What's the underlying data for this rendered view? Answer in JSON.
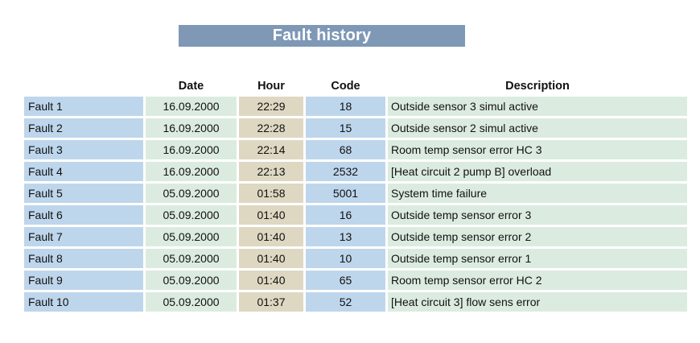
{
  "title": "Fault history",
  "colors": {
    "title_bg": "#7e98b6",
    "title_text": "#ffffff",
    "fault_cell": "#bed6ec",
    "date_cell": "#dcebe0",
    "hour_cell": "#ded7c2",
    "code_cell": "#bed6ec",
    "desc_cell": "#dcebe0",
    "text": "#111111"
  },
  "table": {
    "columns": [
      "",
      "Date",
      "Hour",
      "Code",
      "Description"
    ],
    "rows": [
      {
        "label": "Fault 1",
        "date": "16.09.2000",
        "hour": "22:29",
        "code": "18",
        "description": "Outside sensor 3 simul active"
      },
      {
        "label": "Fault 2",
        "date": "16.09.2000",
        "hour": "22:28",
        "code": "15",
        "description": "Outside sensor 2 simul active"
      },
      {
        "label": "Fault 3",
        "date": "16.09.2000",
        "hour": "22:14",
        "code": "68",
        "description": "Room temp sensor error HC 3"
      },
      {
        "label": "Fault 4",
        "date": "16.09.2000",
        "hour": "22:13",
        "code": "2532",
        "description": "[Heat circuit 2 pump B] overload"
      },
      {
        "label": "Fault 5",
        "date": "05.09.2000",
        "hour": "01:58",
        "code": "5001",
        "description": "System time failure"
      },
      {
        "label": "Fault 6",
        "date": "05.09.2000",
        "hour": "01:40",
        "code": "16",
        "description": "Outside temp sensor error 3"
      },
      {
        "label": "Fault 7",
        "date": "05.09.2000",
        "hour": "01:40",
        "code": "13",
        "description": "Outside temp sensor error 2"
      },
      {
        "label": "Fault 8",
        "date": "05.09.2000",
        "hour": "01:40",
        "code": "10",
        "description": "Outside temp sensor error 1"
      },
      {
        "label": "Fault 9",
        "date": "05.09.2000",
        "hour": "01:40",
        "code": "65",
        "description": "Room temp sensor error HC 2"
      },
      {
        "label": "Fault 10",
        "date": "05.09.2000",
        "hour": "01:37",
        "code": "52",
        "description": "[Heat circuit 3] flow sens error"
      }
    ]
  }
}
